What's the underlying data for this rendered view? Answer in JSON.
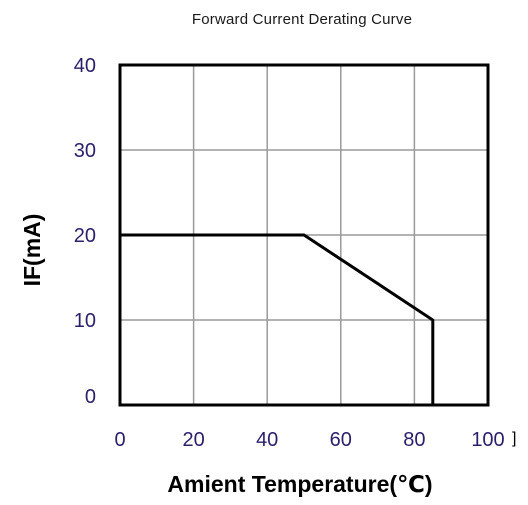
{
  "chart_data": {
    "type": "line",
    "title": "Forward Current Derating Curve",
    "xlabel": "Amient Temperature(℃)",
    "ylabel": "IF(mA)",
    "xlim": [
      0,
      100
    ],
    "ylim": [
      0,
      40
    ],
    "x_ticks": [
      "0",
      "20",
      "40",
      "60",
      "80",
      "100"
    ],
    "y_ticks": [
      "0",
      "10",
      "20",
      "30",
      "40"
    ],
    "grid": true,
    "legend": "none",
    "series": [
      {
        "x": [
          0,
          50,
          85,
          85
        ],
        "y": [
          20,
          20,
          10,
          0
        ]
      }
    ],
    "colors": {
      "line": "#000000",
      "grid": "#9a9a9a",
      "frame": "#000000",
      "tick_text": "#2a1f6a"
    }
  },
  "annotations": {
    "stray_mark": "]"
  }
}
